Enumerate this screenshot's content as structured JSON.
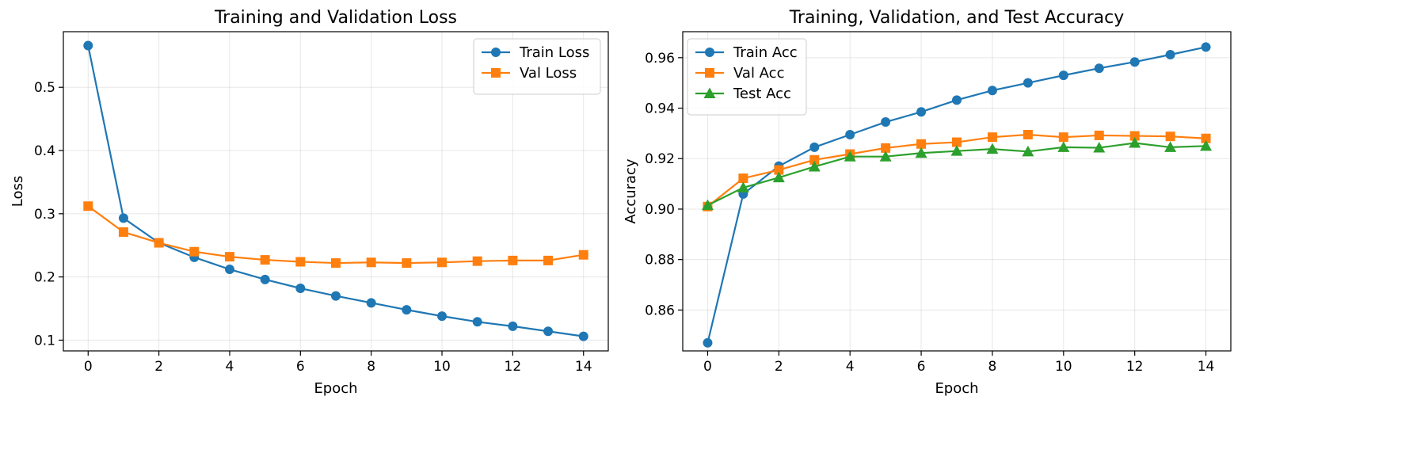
{
  "chart_data": [
    {
      "type": "line",
      "title": "Training and Validation Loss",
      "xlabel": "Epoch",
      "ylabel": "Loss",
      "xlim": [
        -0.7,
        14.7
      ],
      "ylim": [
        0.083,
        0.588
      ],
      "xticks": [
        0,
        2,
        4,
        6,
        8,
        10,
        12,
        14
      ],
      "xtick_labels": [
        "0",
        "2",
        "4",
        "6",
        "8",
        "10",
        "12",
        "14"
      ],
      "yticks": [
        0.1,
        0.2,
        0.3,
        0.4,
        0.5
      ],
      "ytick_labels": [
        "0.1",
        "0.2",
        "0.3",
        "0.4",
        "0.5"
      ],
      "grid": true,
      "legend_position": "top-right",
      "x": [
        0,
        1,
        2,
        3,
        4,
        5,
        6,
        7,
        8,
        9,
        10,
        11,
        12,
        13,
        14
      ],
      "series": [
        {
          "name": "Train Loss",
          "color": "#1f77b4",
          "marker": "circle",
          "values": [
            0.566,
            0.293,
            0.254,
            0.231,
            0.212,
            0.196,
            0.182,
            0.17,
            0.159,
            0.148,
            0.138,
            0.129,
            0.122,
            0.114,
            0.106
          ]
        },
        {
          "name": "Val Loss",
          "color": "#ff7f0e",
          "marker": "square",
          "values": [
            0.312,
            0.271,
            0.254,
            0.24,
            0.232,
            0.227,
            0.224,
            0.222,
            0.223,
            0.222,
            0.223,
            0.225,
            0.226,
            0.226,
            0.235
          ]
        }
      ]
    },
    {
      "type": "line",
      "title": "Training, Validation, and Test Accuracy",
      "xlabel": "Epoch",
      "ylabel": "Accuracy",
      "xlim": [
        -0.7,
        14.7
      ],
      "ylim": [
        0.8438,
        0.9703
      ],
      "xticks": [
        0,
        2,
        4,
        6,
        8,
        10,
        12,
        14
      ],
      "xtick_labels": [
        "0",
        "2",
        "4",
        "6",
        "8",
        "10",
        "12",
        "14"
      ],
      "yticks": [
        0.86,
        0.88,
        0.9,
        0.92,
        0.94,
        0.96
      ],
      "ytick_labels": [
        "0.86",
        "0.88",
        "0.90",
        "0.92",
        "0.94",
        "0.96"
      ],
      "grid": true,
      "legend_position": "top-left",
      "x": [
        0,
        1,
        2,
        3,
        4,
        5,
        6,
        7,
        8,
        9,
        10,
        11,
        12,
        13,
        14
      ],
      "series": [
        {
          "name": "Train Acc",
          "color": "#1f77b4",
          "marker": "circle",
          "values": [
            0.847,
            0.906,
            0.917,
            0.9245,
            0.9295,
            0.9345,
            0.9385,
            0.9432,
            0.947,
            0.95,
            0.953,
            0.9558,
            0.9583,
            0.9612,
            0.9642
          ]
        },
        {
          "name": "Val Acc",
          "color": "#ff7f0e",
          "marker": "square",
          "values": [
            0.901,
            0.9122,
            0.9155,
            0.9195,
            0.9218,
            0.9242,
            0.9258,
            0.9265,
            0.9285,
            0.9295,
            0.9285,
            0.9292,
            0.929,
            0.9288,
            0.928
          ]
        },
        {
          "name": "Test Acc",
          "color": "#2ca02c",
          "marker": "triangle",
          "values": [
            0.9015,
            0.9085,
            0.9125,
            0.9168,
            0.9208,
            0.9208,
            0.9222,
            0.923,
            0.9238,
            0.9228,
            0.9245,
            0.9243,
            0.9262,
            0.9245,
            0.925
          ]
        }
      ]
    }
  ]
}
